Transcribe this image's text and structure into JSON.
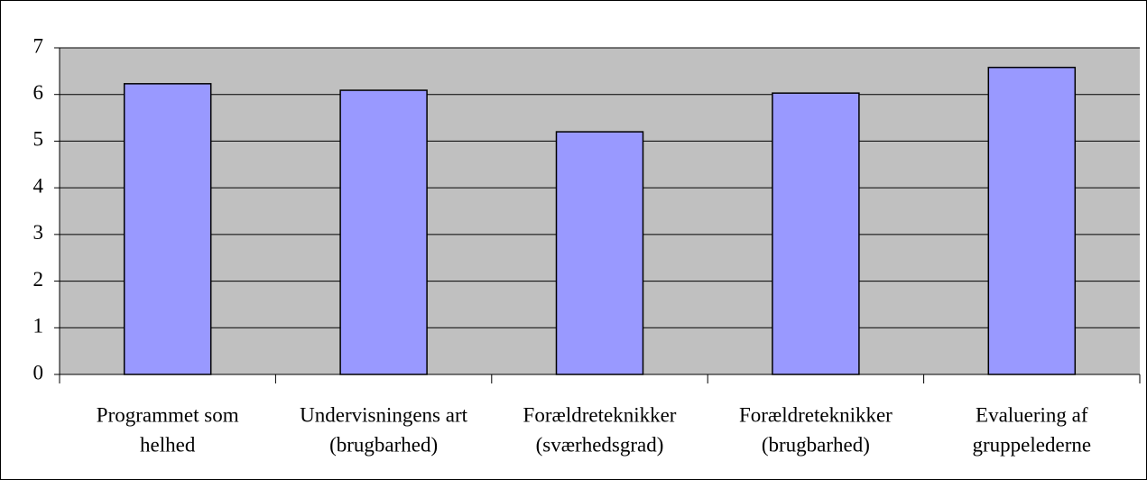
{
  "chart_data": {
    "type": "bar",
    "categories": [
      [
        "Programmet som",
        "helhed"
      ],
      [
        "Undervisningens art",
        "(brugbarhed)"
      ],
      [
        "Forældreteknikker",
        "(sværhedsgrad)"
      ],
      [
        "Forældreteknikker",
        "(brugbarhed)"
      ],
      [
        "Evaluering af",
        "gruppelederne"
      ]
    ],
    "values": [
      6.23,
      6.09,
      5.2,
      6.03,
      6.58
    ],
    "color": "#9999ff",
    "ylim": [
      0,
      7
    ],
    "yticks": [
      0,
      1,
      2,
      3,
      4,
      5,
      6,
      7
    ],
    "grid": true
  }
}
